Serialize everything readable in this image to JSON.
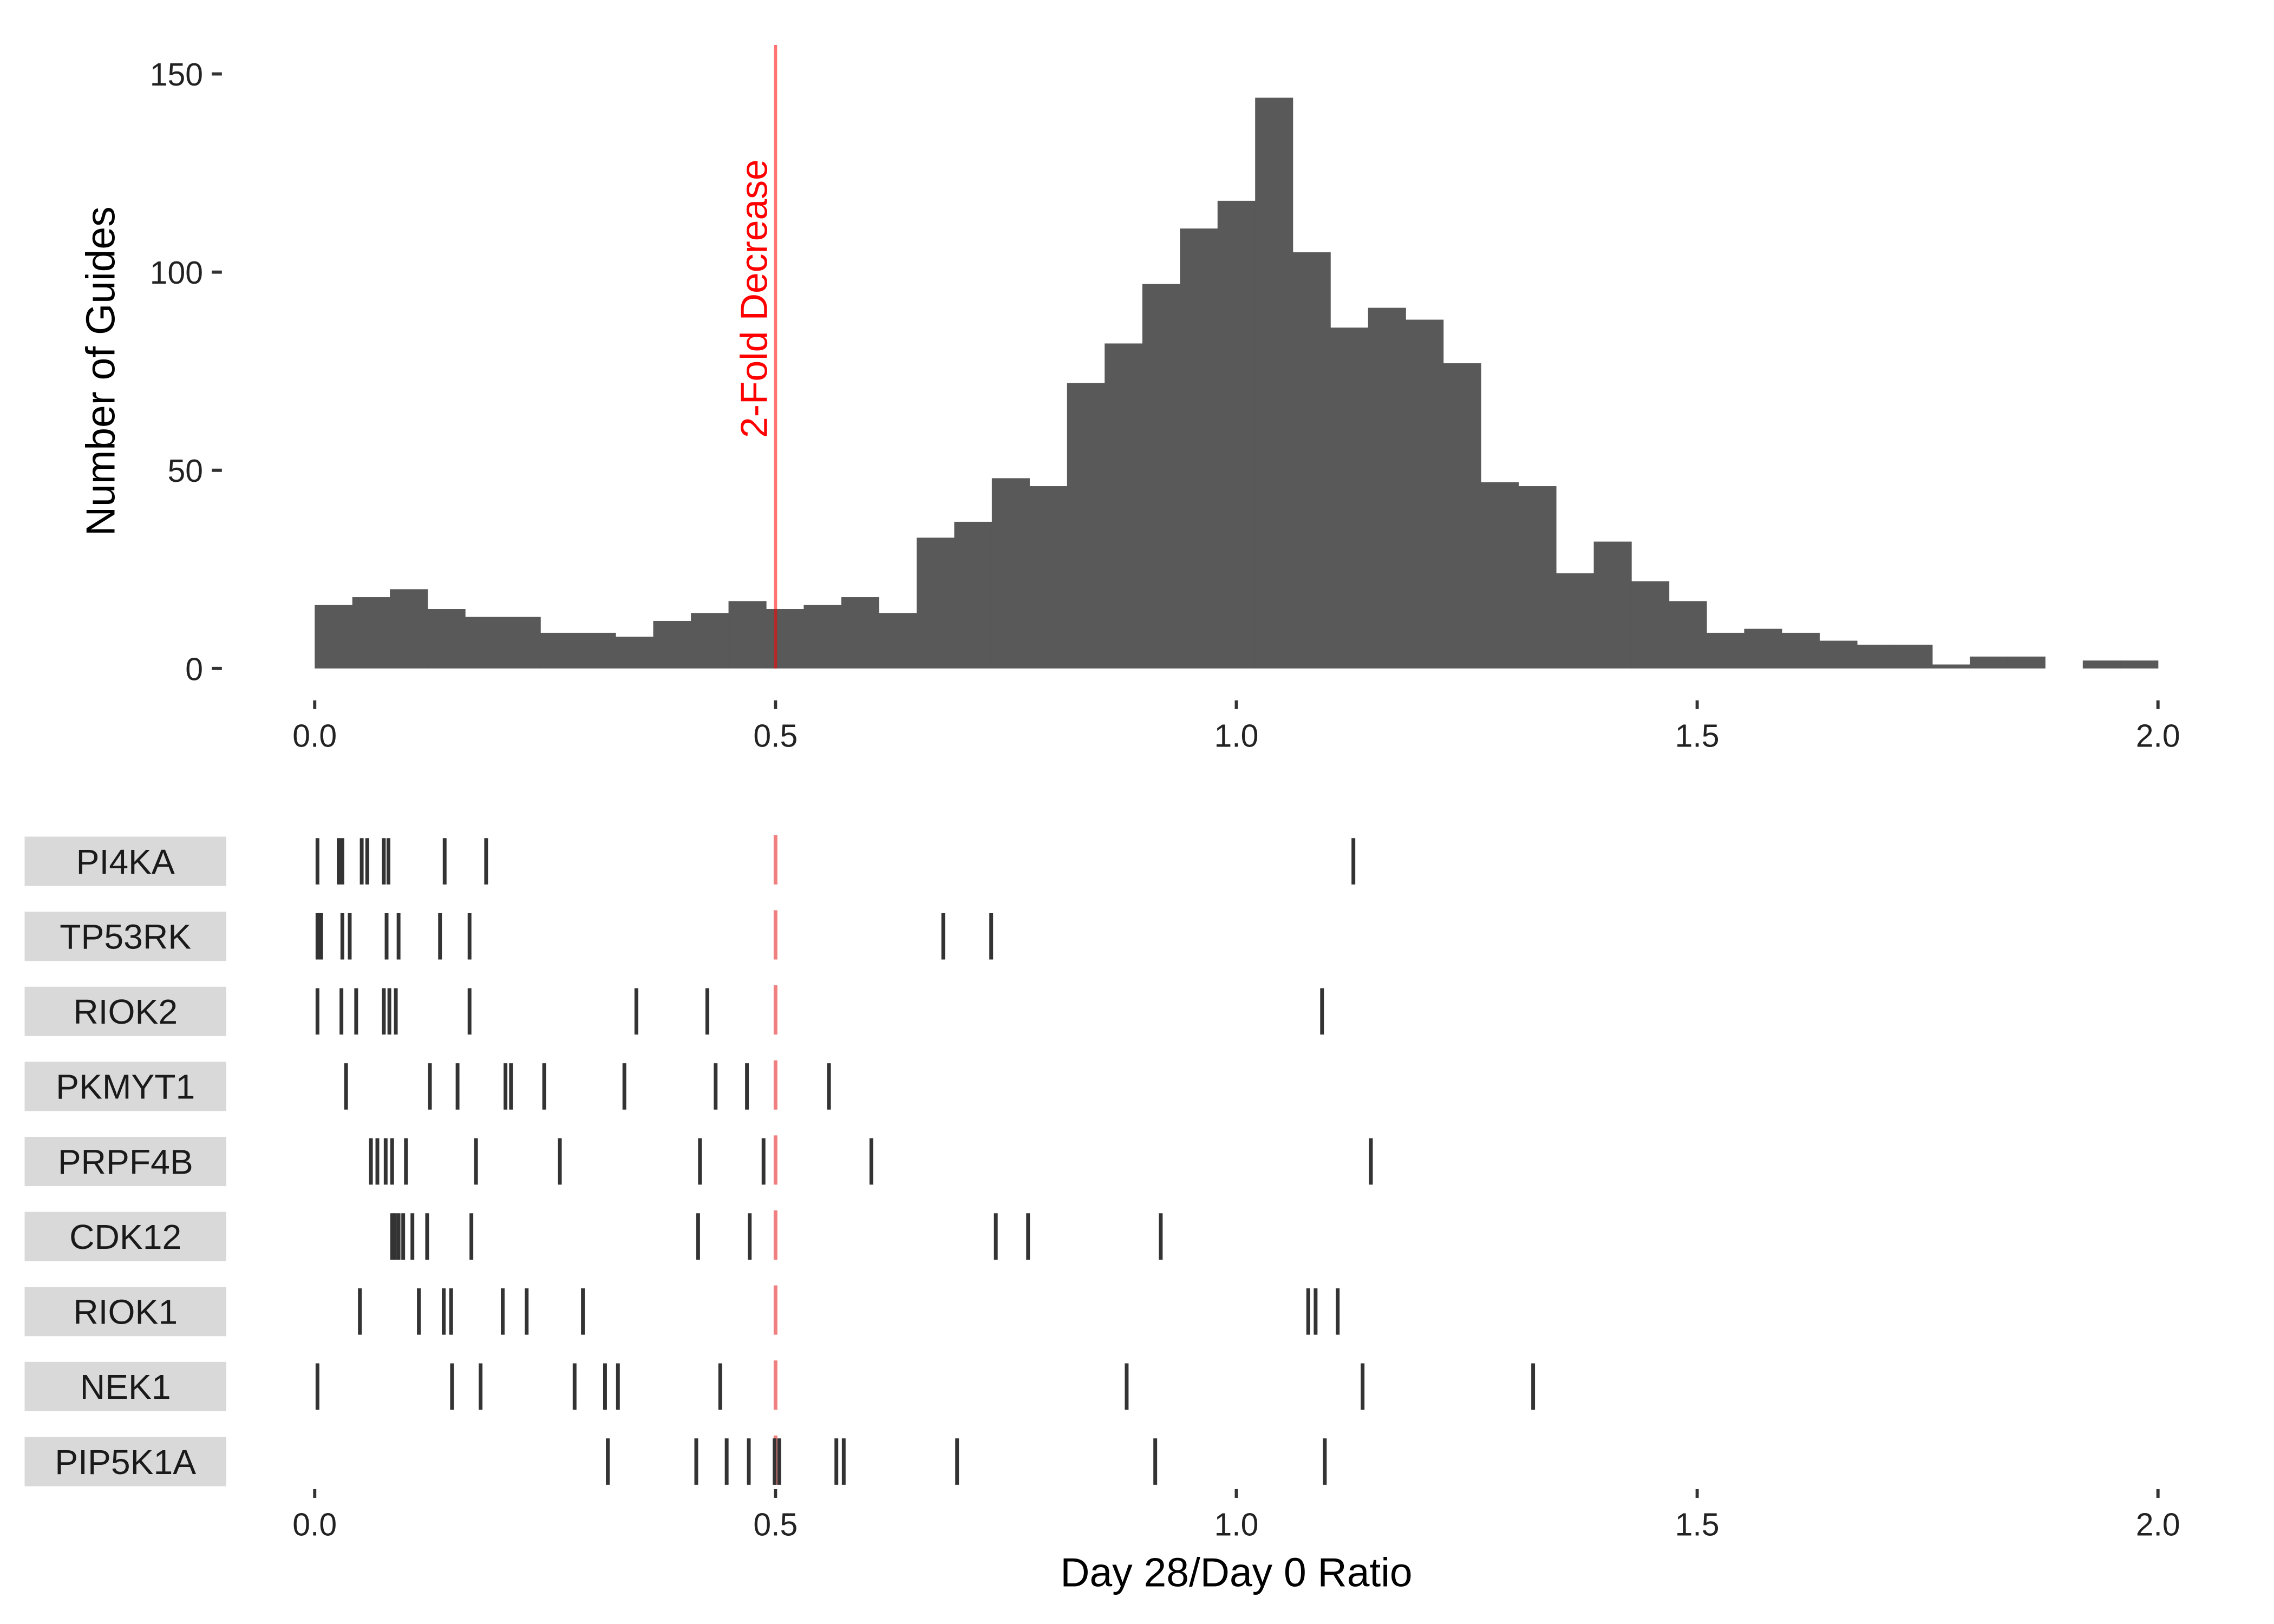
{
  "chart_data": [
    {
      "type": "bar",
      "subtype": "histogram",
      "ylabel": "Number of Guides",
      "xlim": [
        0,
        2
      ],
      "ylim": [
        0,
        150
      ],
      "x_ticks": [
        "0.0",
        "0.5",
        "1.0",
        "1.5",
        "2.0"
      ],
      "y_ticks": [
        "0",
        "50",
        "100",
        "150"
      ],
      "bin_width": 0.04082,
      "bin_starts": [
        0.0,
        0.0408,
        0.0816,
        0.1224,
        0.1633,
        0.2041,
        0.2449,
        0.2857,
        0.3265,
        0.3673,
        0.4082,
        0.449,
        0.4898,
        0.5306,
        0.5714,
        0.6122,
        0.6531,
        0.6939,
        0.7347,
        0.7755,
        0.8163,
        0.8571,
        0.898,
        0.9388,
        0.9796,
        1.0204,
        1.0612,
        1.102,
        1.1429,
        1.1837,
        1.2245,
        1.2653,
        1.3061,
        1.3469,
        1.3878,
        1.4286,
        1.4694,
        1.5102,
        1.551,
        1.5918,
        1.6327,
        1.6735,
        1.7143,
        1.7551,
        1.7959,
        1.8367,
        1.8776,
        1.9184,
        1.9592
      ],
      "values": [
        16,
        18,
        20,
        15,
        13,
        13,
        9,
        9,
        8,
        12,
        14,
        17,
        15,
        16,
        18,
        14,
        33,
        37,
        48,
        46,
        72,
        82,
        97,
        111,
        118,
        144,
        105,
        86,
        91,
        88,
        77,
        47,
        46,
        24,
        32,
        22,
        17,
        9,
        10,
        9,
        7,
        6,
        6,
        1,
        3,
        3,
        0,
        2,
        2
      ],
      "bar_color": "#595959",
      "annotations": [
        {
          "type": "vline",
          "x": 0.5,
          "color": "#ff0000",
          "label": "2-Fold Decrease"
        }
      ]
    },
    {
      "type": "scatter",
      "subtype": "rug",
      "xlabel": "Day 28/Day 0 Ratio",
      "xlim": [
        0,
        2
      ],
      "x_ticks": [
        "0.0",
        "0.5",
        "1.0",
        "1.5",
        "2.0"
      ],
      "categories": [
        "PI4KA",
        "TP53RK",
        "RIOK2",
        "PKMYT1",
        "PRPF4B",
        "CDK12",
        "RIOK1",
        "NEK1",
        "PIP5K1A"
      ],
      "series": [
        {
          "name": "PI4KA",
          "x": [
            0.003,
            0.026,
            0.03,
            0.051,
            0.057,
            0.075,
            0.08,
            0.141,
            0.186,
            1.127
          ]
        },
        {
          "name": "TP53RK",
          "x": [
            0.003,
            0.005,
            0.007,
            0.03,
            0.038,
            0.078,
            0.091,
            0.136,
            0.168,
            0.682,
            0.734
          ]
        },
        {
          "name": "RIOK2",
          "x": [
            0.003,
            0.029,
            0.045,
            0.075,
            0.081,
            0.088,
            0.168,
            0.349,
            0.426,
            1.093
          ]
        },
        {
          "name": "PKMYT1",
          "x": [
            0.034,
            0.125,
            0.155,
            0.207,
            0.213,
            0.249,
            0.336,
            0.435,
            0.469,
            0.558
          ]
        },
        {
          "name": "PRPF4B",
          "x": [
            0.061,
            0.068,
            0.077,
            0.084,
            0.099,
            0.175,
            0.266,
            0.418,
            0.487,
            0.604,
            1.146
          ]
        },
        {
          "name": "CDK12",
          "x": [
            0.084,
            0.087,
            0.091,
            0.096,
            0.106,
            0.122,
            0.17,
            0.416,
            0.472,
            0.739,
            0.774,
            0.918
          ]
        },
        {
          "name": "RIOK1",
          "x": [
            0.049,
            0.113,
            0.14,
            0.148,
            0.204,
            0.23,
            0.291,
            1.078,
            1.086,
            1.11
          ]
        },
        {
          "name": "NEK1",
          "x": [
            0.003,
            0.149,
            0.18,
            0.282,
            0.315,
            0.329,
            0.44,
            0.881,
            1.137,
            1.322
          ]
        },
        {
          "name": "PIP5K1A",
          "x": [
            0.318,
            0.414,
            0.447,
            0.471,
            0.499,
            0.504,
            0.566,
            0.574,
            0.697,
            0.912,
            1.096
          ]
        }
      ],
      "mark_color": "#333333",
      "annotations": [
        {
          "type": "vline",
          "x": 0.5,
          "color": "#f08080"
        }
      ]
    }
  ]
}
